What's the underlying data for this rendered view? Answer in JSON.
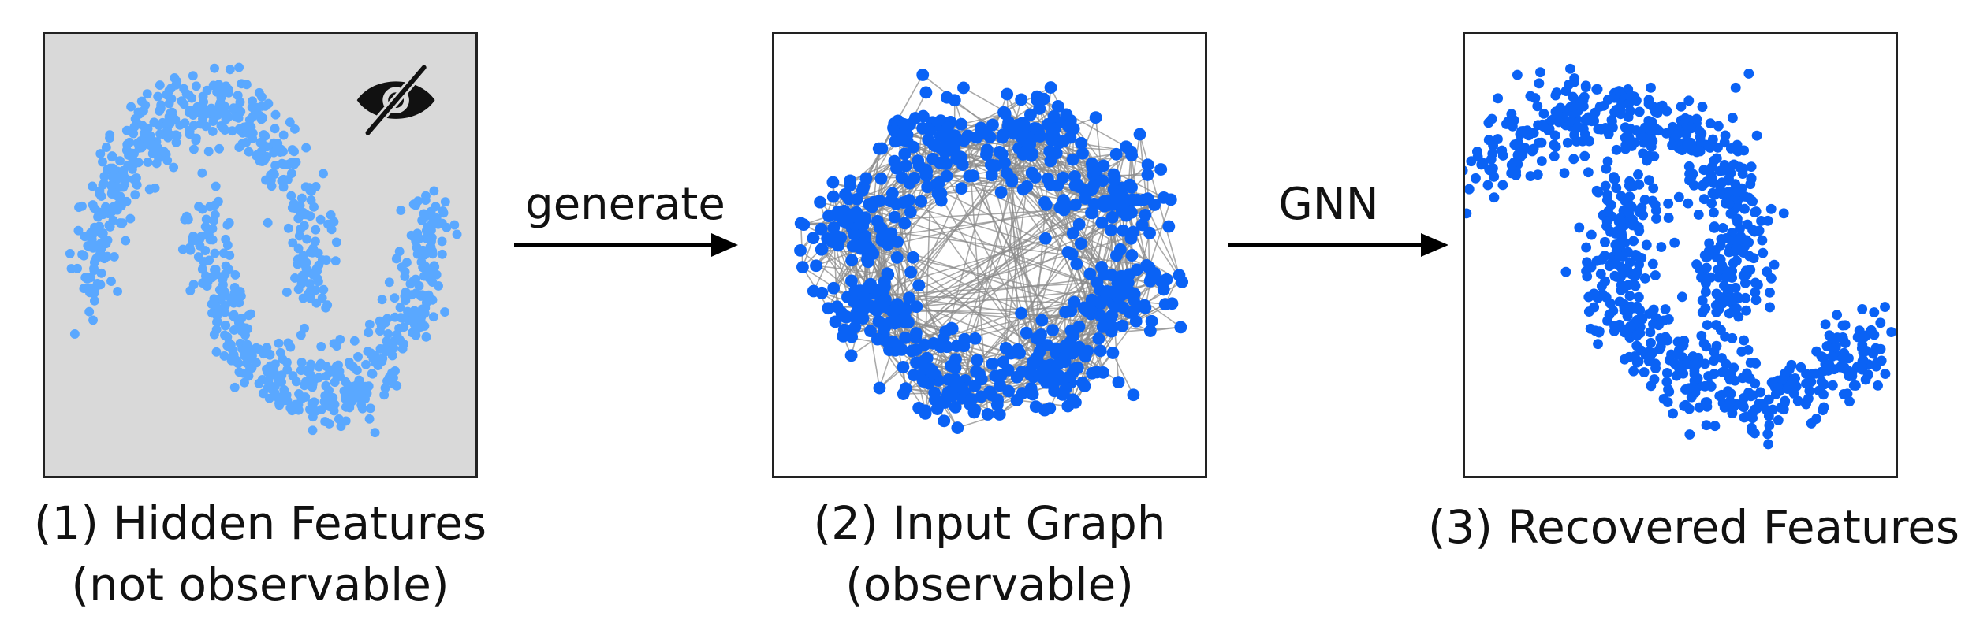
{
  "panels": [
    {
      "id": "hidden-features",
      "caption_line1": "(1) Hidden Features",
      "caption_line2": "(not observable)",
      "background": "#d9d9d9",
      "point_color": "#5aa8ff",
      "icon": "eye-slash-icon"
    },
    {
      "id": "input-graph",
      "caption_line1": "(2) Input Graph",
      "caption_line2": "(observable)",
      "background": "#ffffff",
      "point_color": "#0a62f5",
      "edge_color": "#8c8c8c"
    },
    {
      "id": "recovered-features",
      "caption_line1": "(3) Recovered Features",
      "background": "#ffffff",
      "point_color": "#0a62f5"
    }
  ],
  "arrows": [
    {
      "label": "generate"
    },
    {
      "label": "GNN"
    }
  ]
}
